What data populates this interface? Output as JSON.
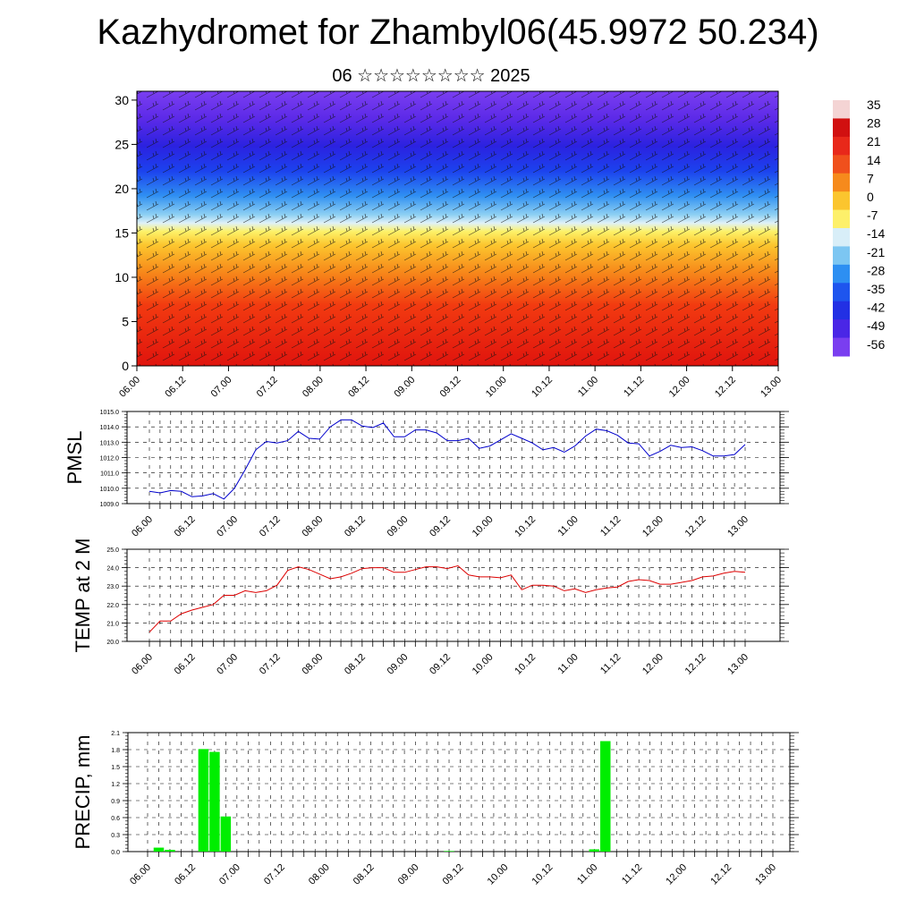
{
  "header": {
    "title": "Kazhydromet for Zhambyl06(45.9972 50.234)",
    "subtitle": "06 ☆☆☆☆☆☆☆☆ 2025"
  },
  "colorbar": {
    "labels": [
      "35",
      "28",
      "21",
      "14",
      "7",
      "0",
      "-7",
      "-14",
      "-21",
      "-28",
      "-35",
      "-42",
      "-49",
      "-56"
    ]
  },
  "chart_data": [
    {
      "type": "heatmap",
      "title": "Kazhydromet for Zhambyl06(45.9972 50.234)",
      "subtitle": "06 ☆☆☆☆☆☆☆☆ 2025",
      "x_ticks": [
        "06.00",
        "06.12",
        "07.00",
        "07.12",
        "08.00",
        "08.12",
        "09.00",
        "09.12",
        "10.00",
        "10.12",
        "11.00",
        "11.12",
        "12.00",
        "12.12",
        "13.00"
      ],
      "y_ticks": [
        "0",
        "5",
        "10",
        "15",
        "20",
        "25",
        "30"
      ],
      "ylim": [
        0,
        31
      ],
      "description_levels": "temperature field with wind barbs by level",
      "colorbar_range": [
        -56,
        35
      ]
    },
    {
      "type": "line",
      "ylabel": "PMSL",
      "ylim": [
        1009.0,
        1015.0
      ],
      "y_ticks": [
        "1009.0",
        "1010.0",
        "1011.0",
        "1012.0",
        "1013.0",
        "1014.0",
        "1015.0"
      ],
      "x_ticks": [
        "06.00",
        "06.12",
        "07.00",
        "07.12",
        "08.00",
        "08.12",
        "09.00",
        "09.12",
        "10.00",
        "10.12",
        "11.00",
        "11.12",
        "12.00",
        "12.12",
        "13.00"
      ],
      "color": "#0000cc",
      "values": [
        1009.8,
        1009.7,
        1009.85,
        1009.8,
        1009.45,
        1009.5,
        1009.65,
        1009.3,
        1010.0,
        1011.2,
        1012.5,
        1013.05,
        1012.95,
        1013.1,
        1013.7,
        1013.25,
        1013.2,
        1014.0,
        1014.45,
        1014.45,
        1014.05,
        1013.95,
        1014.25,
        1013.35,
        1013.35,
        1013.8,
        1013.8,
        1013.6,
        1013.1,
        1013.1,
        1013.25,
        1012.6,
        1012.75,
        1013.15,
        1013.55,
        1013.25,
        1012.95,
        1012.5,
        1012.65,
        1012.35,
        1012.75,
        1013.4,
        1013.85,
        1013.75,
        1013.45,
        1012.95,
        1012.9,
        1012.1,
        1012.4,
        1012.8,
        1012.65,
        1012.7,
        1012.45,
        1012.1,
        1012.1,
        1012.2,
        1012.85
      ]
    },
    {
      "type": "line",
      "ylabel": "TEMP at 2 M",
      "ylim": [
        20.0,
        25.0
      ],
      "y_ticks": [
        "20.0",
        "21.0",
        "22.0",
        "23.0",
        "24.0",
        "25.0"
      ],
      "x_ticks": [
        "06.00",
        "06.12",
        "07.00",
        "07.12",
        "08.00",
        "08.12",
        "09.00",
        "09.12",
        "10.00",
        "10.12",
        "11.00",
        "11.12",
        "12.00",
        "12.12",
        "13.00"
      ],
      "color": "#dd0000",
      "values": [
        20.5,
        21.1,
        21.1,
        21.5,
        21.7,
        21.85,
        22.0,
        22.5,
        22.5,
        22.75,
        22.65,
        22.75,
        23.05,
        23.85,
        24.05,
        23.9,
        23.65,
        23.4,
        23.5,
        23.7,
        23.95,
        24.0,
        24.0,
        23.75,
        23.75,
        23.9,
        24.05,
        24.05,
        23.95,
        24.1,
        23.6,
        23.5,
        23.5,
        23.45,
        23.6,
        22.8,
        23.05,
        23.05,
        23.0,
        22.75,
        22.85,
        22.65,
        22.8,
        22.9,
        22.95,
        23.25,
        23.35,
        23.3,
        23.1,
        23.1,
        23.2,
        23.3,
        23.5,
        23.55,
        23.7,
        23.8,
        23.75
      ]
    },
    {
      "type": "bar",
      "ylabel": "PRECIP, mm",
      "ylim": [
        0.0,
        2.1
      ],
      "y_ticks": [
        "0.0",
        "0.3",
        "0.6",
        "0.9",
        "1.2",
        "1.5",
        "1.8",
        "2.1"
      ],
      "x_ticks": [
        "06.00",
        "06.12",
        "07.00",
        "07.12",
        "08.00",
        "08.12",
        "09.00",
        "09.12",
        "10.00",
        "10.12",
        "11.00",
        "11.12",
        "12.00",
        "12.12",
        "13.00"
      ],
      "color": "#00ee00",
      "bars": [
        {
          "index": 1,
          "value": 0.07
        },
        {
          "index": 2,
          "value": 0.03
        },
        {
          "index": 5,
          "value": 1.81
        },
        {
          "index": 6,
          "value": 1.76
        },
        {
          "index": 7,
          "value": 0.62
        },
        {
          "index": 27,
          "value": 0.01
        },
        {
          "index": 40,
          "value": 0.04
        },
        {
          "index": 41,
          "value": 1.95
        }
      ]
    }
  ]
}
